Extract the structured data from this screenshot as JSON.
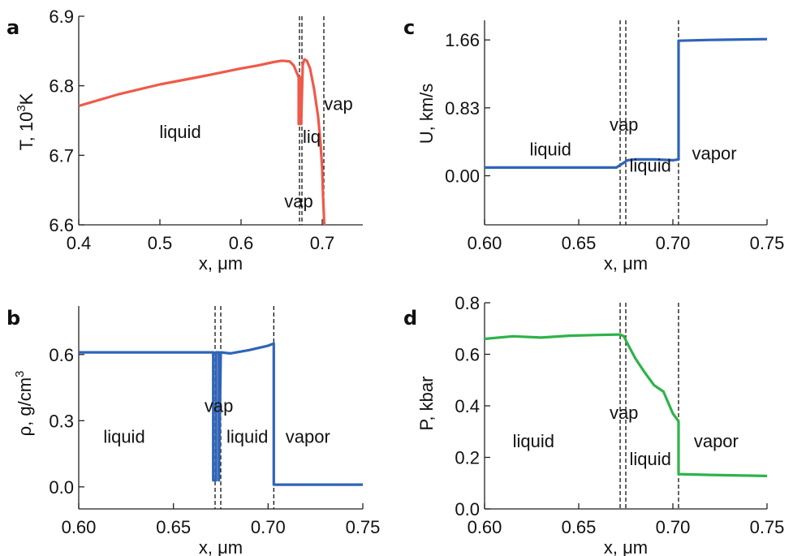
{
  "chart_data": [
    {
      "id": "a",
      "type": "line",
      "panel_letter": "a",
      "xlabel": "x, μm",
      "ylabel_parts": [
        "T, 10",
        "3",
        "K"
      ],
      "xlim": [
        0.4,
        0.75
      ],
      "ylim": [
        6.6,
        6.9
      ],
      "xticks": [
        0.4,
        0.5,
        0.6,
        0.7
      ],
      "xtick_labels": [
        "0.4",
        "0.5",
        "0.6",
        "0.7"
      ],
      "yticks": [
        6.6,
        6.7,
        6.8,
        6.9
      ],
      "ytick_labels": [
        "6.6",
        "6.7",
        "6.8",
        "6.9"
      ],
      "color": "#ee5a4a",
      "dashed_x": [
        0.672,
        0.675,
        0.702
      ],
      "series": [
        {
          "x": [
            0.4,
            0.45,
            0.5,
            0.55,
            0.6,
            0.62,
            0.64,
            0.65,
            0.66,
            0.665,
            0.671,
            0.671,
            0.6725,
            0.6725,
            0.674,
            0.674,
            0.676,
            0.678,
            0.681,
            0.685,
            0.69,
            0.695,
            0.698,
            0.7,
            0.701,
            0.702,
            0.7025
          ],
          "y": [
            6.771,
            6.788,
            6.802,
            6.813,
            6.825,
            6.829,
            6.834,
            6.836,
            6.835,
            6.829,
            6.812,
            6.745,
            6.745,
            6.812,
            6.812,
            6.745,
            6.83,
            6.838,
            6.836,
            6.825,
            6.795,
            6.755,
            6.715,
            6.68,
            6.64,
            6.615,
            6.6
          ]
        }
      ],
      "annotations": [
        {
          "text": "liquid",
          "x": 0.525,
          "y": 6.725
        },
        {
          "text": "vap",
          "x": 0.72,
          "y": 6.765
        },
        {
          "text": "liq",
          "x": 0.687,
          "y": 6.718
        },
        {
          "text": "vap",
          "x": 0.671,
          "y": 6.625
        }
      ]
    },
    {
      "id": "c",
      "type": "line",
      "panel_letter": "c",
      "xlabel": "x, μm",
      "ylabel_parts": [
        "U, km/s",
        "",
        ""
      ],
      "xlim": [
        0.6,
        0.75
      ],
      "ylim": [
        -0.6,
        1.9
      ],
      "xticks": [
        0.6,
        0.65,
        0.7,
        0.75
      ],
      "xtick_labels": [
        "0.60",
        "0.65",
        "0.70",
        "0.75"
      ],
      "yticks": [
        0.0,
        0.83,
        1.66
      ],
      "ytick_labels": [
        "0.00",
        "0.83",
        "1.66"
      ],
      "color": "#2f64b8",
      "dashed_x": [
        0.672,
        0.675,
        0.703
      ],
      "series": [
        {
          "x": [
            0.6,
            0.62,
            0.64,
            0.66,
            0.67,
            0.672,
            0.674,
            0.676,
            0.68,
            0.69,
            0.7,
            0.703,
            0.703,
            0.72,
            0.75
          ],
          "y": [
            0.1,
            0.1,
            0.1,
            0.1,
            0.1,
            0.13,
            0.16,
            0.19,
            0.2,
            0.2,
            0.19,
            0.2,
            1.65,
            1.66,
            1.67
          ]
        }
      ],
      "annotations": [
        {
          "text": "liquid",
          "x": 0.635,
          "y": 0.25
        },
        {
          "text": "vap",
          "x": 0.674,
          "y": 0.55
        },
        {
          "text": "liquid",
          "x": 0.688,
          "y": 0.05
        },
        {
          "text": "vapor",
          "x": 0.722,
          "y": 0.2
        }
      ]
    },
    {
      "id": "b",
      "type": "line",
      "panel_letter": "b",
      "xlabel": "x, μm",
      "ylabel_parts": [
        "ρ, g/cm",
        "3",
        ""
      ],
      "xlim": [
        0.6,
        0.75
      ],
      "ylim": [
        -0.1,
        0.82
      ],
      "xticks": [
        0.6,
        0.65,
        0.7,
        0.75
      ],
      "xtick_labels": [
        "0.60",
        "0.65",
        "0.70",
        "0.75"
      ],
      "yticks": [
        0.0,
        0.3,
        0.6
      ],
      "ytick_labels": [
        "0.0",
        "0.3",
        "0.6"
      ],
      "color": "#2f64b8",
      "dashed_x": [
        0.672,
        0.675,
        0.703
      ],
      "series": [
        {
          "x": [
            0.6,
            0.62,
            0.64,
            0.66,
            0.671,
            0.671,
            0.6725,
            0.6725,
            0.674,
            0.674,
            0.675,
            0.68,
            0.69,
            0.7,
            0.703,
            0.703,
            0.72,
            0.75
          ],
          "y": [
            0.61,
            0.61,
            0.61,
            0.61,
            0.61,
            0.03,
            0.03,
            0.61,
            0.61,
            0.03,
            0.61,
            0.605,
            0.62,
            0.64,
            0.65,
            0.01,
            0.01,
            0.01
          ]
        }
      ],
      "annotations": [
        {
          "text": "liquid",
          "x": 0.624,
          "y": 0.2
        },
        {
          "text": "vap",
          "x": 0.674,
          "y": 0.34
        },
        {
          "text": "liquid",
          "x": 0.689,
          "y": 0.2
        },
        {
          "text": "vapor",
          "x": 0.721,
          "y": 0.2
        }
      ]
    },
    {
      "id": "d",
      "type": "line",
      "panel_letter": "d",
      "xlabel": "x, μm",
      "ylabel_parts": [
        "P, kbar",
        "",
        ""
      ],
      "xlim": [
        0.6,
        0.75
      ],
      "ylim": [
        0.0,
        0.8
      ],
      "xticks": [
        0.6,
        0.65,
        0.7,
        0.75
      ],
      "xtick_labels": [
        "0.60",
        "0.65",
        "0.70",
        "0.75"
      ],
      "yticks": [
        0.0,
        0.2,
        0.4,
        0.6,
        0.8
      ],
      "ytick_labels": [
        "0.0",
        "0.2",
        "0.4",
        "0.6",
        "0.8"
      ],
      "color": "#2db34a",
      "dashed_x": [
        0.672,
        0.675,
        0.703
      ],
      "series": [
        {
          "x": [
            0.6,
            0.615,
            0.63,
            0.645,
            0.66,
            0.672,
            0.674,
            0.676,
            0.68,
            0.685,
            0.69,
            0.695,
            0.7,
            0.703,
            0.703,
            0.72,
            0.75
          ],
          "y": [
            0.66,
            0.67,
            0.665,
            0.672,
            0.675,
            0.677,
            0.67,
            0.64,
            0.585,
            0.53,
            0.48,
            0.455,
            0.37,
            0.34,
            0.135,
            0.132,
            0.128
          ]
        }
      ],
      "annotations": [
        {
          "text": "liquid",
          "x": 0.626,
          "y": 0.24
        },
        {
          "text": "vap",
          "x": 0.674,
          "y": 0.35
        },
        {
          "text": "liquid",
          "x": 0.688,
          "y": 0.17
        },
        {
          "text": "vapor",
          "x": 0.723,
          "y": 0.24
        }
      ]
    }
  ]
}
